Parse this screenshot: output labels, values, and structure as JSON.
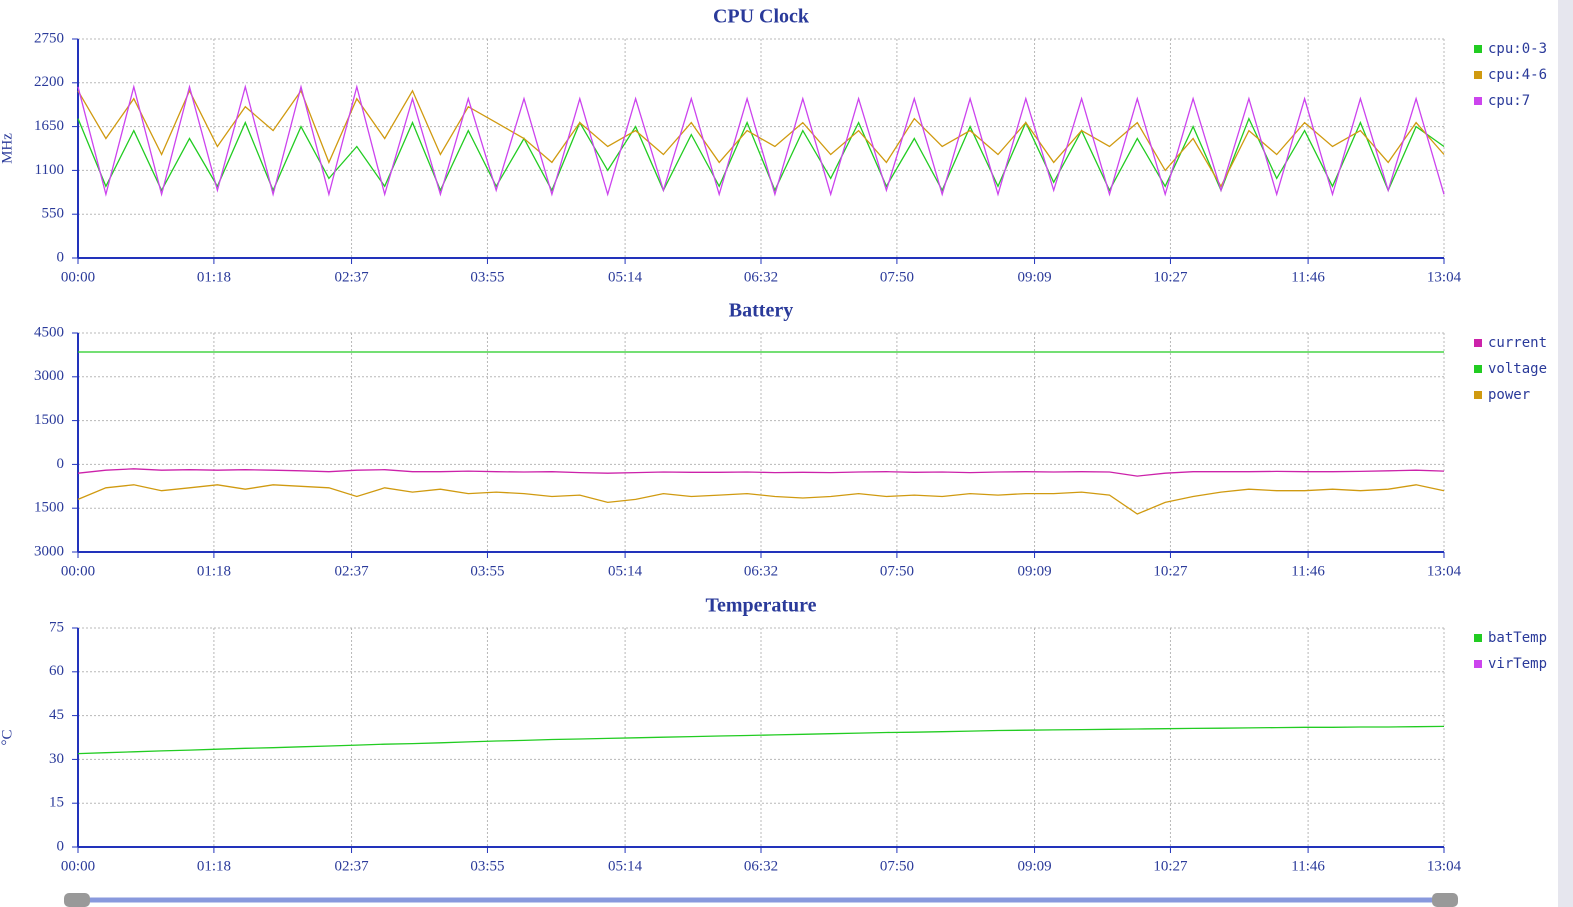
{
  "charts": [
    {
      "chart_data": {
        "type": "line",
        "title": "CPU Clock",
        "y_label": "MHz",
        "x": [
          0,
          16,
          32,
          48,
          64,
          80,
          96,
          112,
          128,
          144,
          160,
          176,
          192,
          208,
          224,
          240,
          256,
          272,
          288,
          304,
          320,
          336,
          352,
          368,
          384,
          400,
          416,
          432,
          448,
          464,
          480,
          496,
          512,
          528,
          544,
          560,
          576,
          592,
          608,
          624,
          640,
          656,
          672,
          688,
          704,
          720,
          736,
          752,
          768,
          784
        ],
        "xlim": [
          0,
          784
        ],
        "xticks": [
          {
            "value": 0,
            "label": "00:00"
          },
          {
            "value": 78,
            "label": "01:18"
          },
          {
            "value": 157,
            "label": "02:37"
          },
          {
            "value": 235,
            "label": "03:55"
          },
          {
            "value": 314,
            "label": "05:14"
          },
          {
            "value": 392,
            "label": "06:32"
          },
          {
            "value": 470,
            "label": "07:50"
          },
          {
            "value": 549,
            "label": "09:09"
          },
          {
            "value": 627,
            "label": "10:27"
          },
          {
            "value": 706,
            "label": "11:46"
          },
          {
            "value": 784,
            "label": "13:04"
          }
        ],
        "ylim": [
          0,
          2750
        ],
        "yticks": [
          0,
          550,
          1100,
          1650,
          2200,
          2750
        ],
        "grid": true,
        "series": [
          {
            "name": "cpu:0-3",
            "color": "#22cc22",
            "values": [
              1750,
              900,
              1600,
              850,
              1500,
              900,
              1700,
              850,
              1650,
              1000,
              1400,
              900,
              1700,
              850,
              1600,
              900,
              1500,
              850,
              1700,
              1100,
              1650,
              850,
              1550,
              900,
              1700,
              850,
              1600,
              1000,
              1700,
              900,
              1500,
              850,
              1650,
              900,
              1700,
              950,
              1600,
              850,
              1500,
              900,
              1650,
              850,
              1750,
              1000,
              1600,
              900,
              1700,
              850,
              1650,
              1400
            ]
          },
          {
            "name": "cpu:4-6",
            "color": "#d09a10",
            "values": [
              2100,
              1500,
              2000,
              1300,
              2100,
              1400,
              1900,
              1600,
              2100,
              1200,
              2000,
              1500,
              2100,
              1300,
              1900,
              1700,
              1500,
              1200,
              1700,
              1400,
              1600,
              1300,
              1700,
              1200,
              1600,
              1400,
              1700,
              1300,
              1600,
              1200,
              1750,
              1400,
              1600,
              1300,
              1700,
              1200,
              1600,
              1400,
              1700,
              1100,
              1500,
              900,
              1600,
              1300,
              1700,
              1400,
              1600,
              1200,
              1700,
              1300
            ]
          },
          {
            "name": "cpu:7",
            "color": "#cc44ee",
            "values": [
              2150,
              800,
              2150,
              800,
              2150,
              850,
              2150,
              800,
              2150,
              800,
              2150,
              800,
              2000,
              800,
              2000,
              850,
              2000,
              800,
              2000,
              800,
              2000,
              850,
              2000,
              800,
              2000,
              800,
              2000,
              800,
              2000,
              850,
              2000,
              800,
              2000,
              800,
              2000,
              850,
              2000,
              800,
              2000,
              800,
              2000,
              850,
              2000,
              800,
              2000,
              800,
              2000,
              850,
              2000,
              800
            ]
          }
        ]
      }
    },
    {
      "chart_data": {
        "type": "line",
        "title": "Battery",
        "x": [
          0,
          16,
          32,
          48,
          64,
          80,
          96,
          112,
          128,
          144,
          160,
          176,
          192,
          208,
          224,
          240,
          256,
          272,
          288,
          304,
          320,
          336,
          352,
          368,
          384,
          400,
          416,
          432,
          448,
          464,
          480,
          496,
          512,
          528,
          544,
          560,
          576,
          592,
          608,
          624,
          640,
          656,
          672,
          688,
          704,
          720,
          736,
          752,
          768,
          784
        ],
        "xlim": [
          0,
          784
        ],
        "xticks": [
          {
            "value": 0,
            "label": "00:00"
          },
          {
            "value": 78,
            "label": "01:18"
          },
          {
            "value": 157,
            "label": "02:37"
          },
          {
            "value": 235,
            "label": "03:55"
          },
          {
            "value": 314,
            "label": "05:14"
          },
          {
            "value": 392,
            "label": "06:32"
          },
          {
            "value": 470,
            "label": "07:50"
          },
          {
            "value": 549,
            "label": "09:09"
          },
          {
            "value": 627,
            "label": "10:27"
          },
          {
            "value": 706,
            "label": "11:46"
          },
          {
            "value": 784,
            "label": "13:04"
          }
        ],
        "ylim": [
          -3000,
          4500
        ],
        "yticks": [
          {
            "value": -3000,
            "label": "3000"
          },
          {
            "value": -1500,
            "label": "1500"
          },
          0,
          1500,
          3000,
          4500
        ],
        "grid": true,
        "series": [
          {
            "name": "current",
            "color": "#cc22aa",
            "values": [
              -300,
              -200,
              -150,
              -200,
              -180,
              -200,
              -180,
              -200,
              -220,
              -250,
              -200,
              -180,
              -250,
              -250,
              -230,
              -250,
              -260,
              -250,
              -280,
              -300,
              -280,
              -260,
              -270,
              -270,
              -260,
              -280,
              -270,
              -280,
              -260,
              -250,
              -270,
              -260,
              -280,
              -260,
              -250,
              -260,
              -250,
              -260,
              -400,
              -300,
              -250,
              -250,
              -250,
              -240,
              -250,
              -250,
              -240,
              -220,
              -200,
              -230
            ]
          },
          {
            "name": "voltage",
            "color": "#22cc22",
            "values": [
              3850,
              3850,
              3850,
              3850,
              3850,
              3850,
              3850,
              3850,
              3850,
              3850,
              3850,
              3850,
              3850,
              3850,
              3850,
              3850,
              3850,
              3850,
              3850,
              3850,
              3850,
              3850,
              3850,
              3850,
              3850,
              3850,
              3850,
              3850,
              3850,
              3850,
              3850,
              3850,
              3850,
              3850,
              3850,
              3850,
              3850,
              3850,
              3850,
              3850,
              3850,
              3850,
              3850,
              3850,
              3850,
              3850,
              3850,
              3850,
              3850,
              3850
            ]
          },
          {
            "name": "power",
            "color": "#d09a10",
            "values": [
              -1200,
              -800,
              -700,
              -900,
              -800,
              -700,
              -850,
              -700,
              -750,
              -800,
              -1100,
              -800,
              -950,
              -850,
              -1000,
              -950,
              -1000,
              -1100,
              -1050,
              -1300,
              -1200,
              -1000,
              -1100,
              -1050,
              -1000,
              -1100,
              -1150,
              -1100,
              -1000,
              -1100,
              -1050,
              -1100,
              -1000,
              -1050,
              -1000,
              -1000,
              -950,
              -1050,
              -1700,
              -1300,
              -1100,
              -950,
              -850,
              -900,
              -900,
              -850,
              -900,
              -850,
              -700,
              -900
            ]
          }
        ]
      }
    },
    {
      "chart_data": {
        "type": "line",
        "title": "Temperature",
        "y_label": "°C",
        "x": [
          0,
          16,
          32,
          48,
          64,
          80,
          96,
          112,
          128,
          144,
          160,
          176,
          192,
          208,
          224,
          240,
          256,
          272,
          288,
          304,
          320,
          336,
          352,
          368,
          384,
          400,
          416,
          432,
          448,
          464,
          480,
          496,
          512,
          528,
          544,
          560,
          576,
          592,
          608,
          624,
          640,
          656,
          672,
          688,
          704,
          720,
          736,
          752,
          768,
          784
        ],
        "xlim": [
          0,
          784
        ],
        "xticks": [
          {
            "value": 0,
            "label": "00:00"
          },
          {
            "value": 78,
            "label": "01:18"
          },
          {
            "value": 157,
            "label": "02:37"
          },
          {
            "value": 235,
            "label": "03:55"
          },
          {
            "value": 314,
            "label": "05:14"
          },
          {
            "value": 392,
            "label": "06:32"
          },
          {
            "value": 470,
            "label": "07:50"
          },
          {
            "value": 549,
            "label": "09:09"
          },
          {
            "value": 627,
            "label": "10:27"
          },
          {
            "value": 706,
            "label": "11:46"
          },
          {
            "value": 784,
            "label": "13:04"
          }
        ],
        "ylim": [
          0,
          75
        ],
        "yticks": [
          0,
          15,
          30,
          45,
          60,
          75
        ],
        "grid": true,
        "series": [
          {
            "name": "batTemp",
            "color": "#22cc22",
            "values": [
              32.0,
              32.3,
              32.6,
              32.9,
              33.2,
              33.5,
              33.8,
              34.0,
              34.3,
              34.6,
              34.9,
              35.2,
              35.4,
              35.7,
              36.0,
              36.3,
              36.5,
              36.8,
              37.0,
              37.2,
              37.4,
              37.6,
              37.8,
              38.0,
              38.2,
              38.4,
              38.6,
              38.8,
              39.0,
              39.2,
              39.3,
              39.5,
              39.7,
              39.9,
              40.0,
              40.1,
              40.2,
              40.3,
              40.4,
              40.5,
              40.6,
              40.7,
              40.8,
              40.9,
              41.0,
              41.0,
              41.1,
              41.1,
              41.2,
              41.3
            ]
          },
          {
            "name": "virTemp",
            "color": "#cc44ee",
            "values": [
              null,
              null,
              null,
              null,
              null,
              null,
              null,
              null,
              null,
              null,
              null,
              null,
              null,
              null,
              null,
              null,
              null,
              null,
              null,
              null,
              null,
              null,
              null,
              null,
              null,
              null,
              null,
              null,
              null,
              null,
              null,
              null,
              null,
              null,
              null,
              null,
              null,
              null,
              null,
              null,
              null,
              null,
              null,
              null,
              null,
              null,
              null,
              null,
              null,
              null
            ]
          }
        ]
      }
    }
  ]
}
